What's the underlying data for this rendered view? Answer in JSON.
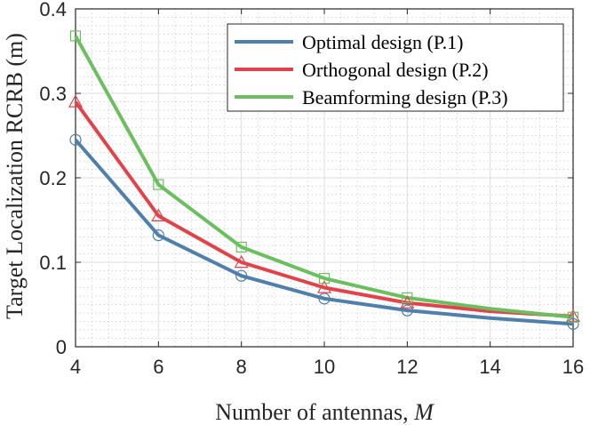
{
  "chart_data": {
    "type": "line",
    "title": "",
    "xlabel": "Number of antennas, ",
    "xlabel_var": "M",
    "ylabel": "Target Localization RCRB (m)",
    "x": [
      4,
      6,
      8,
      10,
      12,
      14,
      16
    ],
    "xlim": [
      4,
      16
    ],
    "ylim": [
      0,
      0.4
    ],
    "xticks": [
      4,
      6,
      8,
      10,
      12,
      14,
      16
    ],
    "yticks": [
      0,
      0.1,
      0.2,
      0.3,
      0.4
    ],
    "ytick_labels": [
      "0",
      "0.1",
      "0.2",
      "0.3",
      "0.4"
    ],
    "grid": true,
    "minor_grid": true,
    "legend_position": "top-right",
    "series": [
      {
        "name": "Optimal design (P.1)",
        "color": "#4f7fab",
        "marker": "circle",
        "values": [
          0.245,
          0.132,
          0.084,
          0.057,
          0.043,
          0.034,
          0.027
        ]
      },
      {
        "name": "Orthogonal design (P.2)",
        "color": "#e2434a",
        "marker": "triangle",
        "values": [
          0.29,
          0.155,
          0.1,
          0.07,
          0.052,
          0.042,
          0.036
        ]
      },
      {
        "name": "Beamforming design (P.3)",
        "color": "#6cbf5f",
        "marker": "square",
        "values": [
          0.368,
          0.192,
          0.118,
          0.081,
          0.058,
          0.045,
          0.035
        ]
      }
    ]
  }
}
